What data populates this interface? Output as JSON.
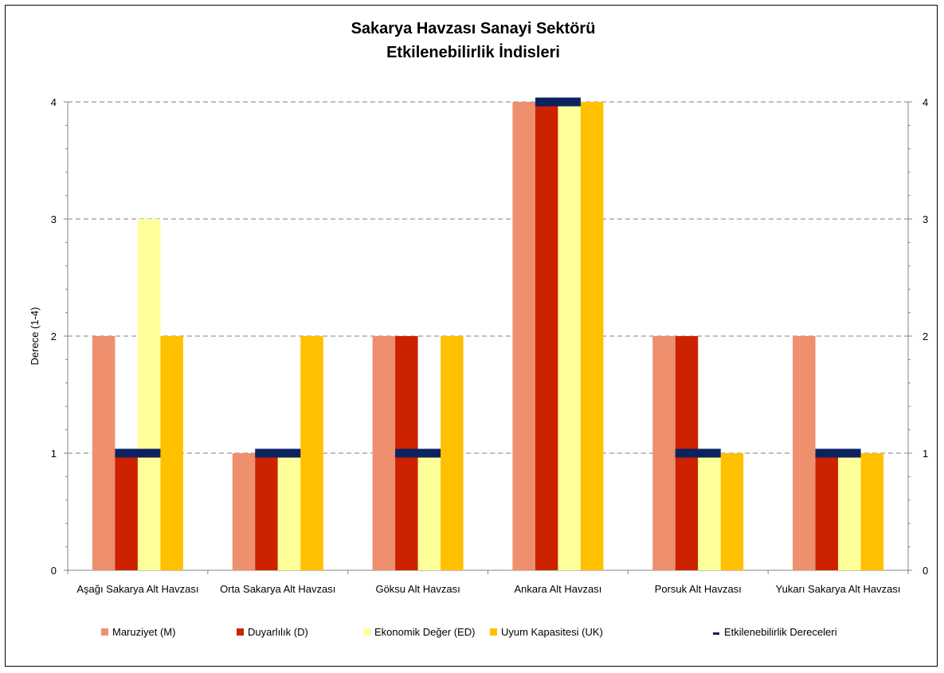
{
  "chart_data": {
    "type": "bar",
    "title": [
      "Sakarya Havzası Sanayi Sektörü",
      "Etkilenebilirlik İndisleri"
    ],
    "ylabel": "Derece (1-4)",
    "ylim": [
      0,
      4
    ],
    "yticks": [
      0,
      1,
      2,
      3,
      4
    ],
    "secondary_y_axis": true,
    "grid": "horizontal-dashed",
    "legend_position": "bottom",
    "categories": [
      "Aşağı Sakarya Alt Havzası",
      "Orta Sakarya Alt Havzası",
      "Göksu Alt Havzası",
      "Ankara Alt Havzası",
      "Porsuk Alt Havzası",
      "Yukarı Sakarya Alt Havzası"
    ],
    "series": [
      {
        "name": "Maruziyet (M)",
        "color": "#ee8f6e",
        "values": [
          2,
          1,
          2,
          4,
          2,
          2
        ]
      },
      {
        "name": "Duyarlılık (D)",
        "color": "#cc2200",
        "values": [
          1,
          1,
          2,
          4,
          2,
          1
        ]
      },
      {
        "name": "Ekonomik Değer (ED)",
        "color": "#ffff99",
        "values": [
          3,
          1,
          1,
          4,
          1,
          1
        ]
      },
      {
        "name": "Uyum Kapasitesi (UK)",
        "color": "#ffc000",
        "values": [
          2,
          2,
          2,
          4,
          1,
          1
        ]
      }
    ],
    "markers": {
      "name": "Etkilenebilirlik Dereceleri",
      "color": "#0c2260",
      "values": [
        1,
        1,
        1,
        4,
        1,
        1
      ]
    }
  }
}
